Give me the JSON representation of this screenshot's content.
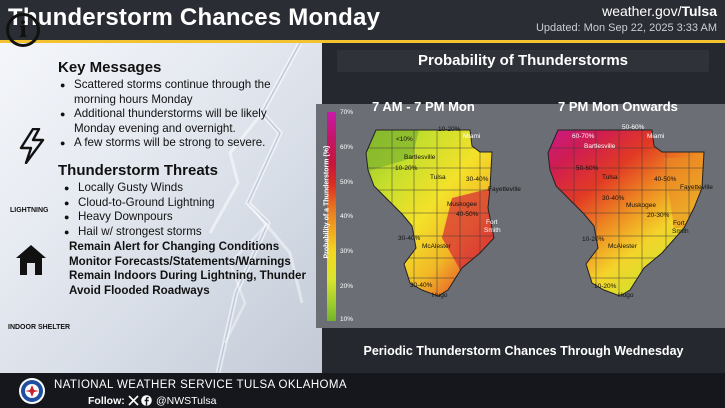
{
  "header": {
    "title": "Thunderstorm Chances Monday",
    "site_prefix": "weather.gov/",
    "site_office": "Tulsa",
    "updated": "Updated: Mon Sep 22, 2025 3:33 AM"
  },
  "key_messages": {
    "title": "Key Messages",
    "bullets": [
      "Scattered storms continue through the morning hours Monday",
      "Additional thunderstorms will be likely Monday evening and overnight.",
      "A few storms will be strong to severe."
    ]
  },
  "threats": {
    "title": "Thunderstorm Threats",
    "icon_caption": "LIGHTNING",
    "bullets": [
      "Locally Gusty Winds",
      "Cloud-to-Ground Lightning",
      "Heavy Downpours",
      "Hail w/ strongest storms"
    ]
  },
  "shelter": {
    "icon_caption": "INDOOR SHELTER",
    "lines": [
      "Remain Alert for Changing Conditions",
      "Monitor Forecasts/Statements/Warnings",
      "Remain Indoors During Lightning, Thunder",
      "Avoid Flooded Roadways"
    ]
  },
  "probability": {
    "title": "Probability of Thunderstorms",
    "colorbar_title": "Probability of a Thunderstorm (%)",
    "colorbar_labels": [
      "70%",
      "60%",
      "50%",
      "40%",
      "30%",
      "20%",
      "10%"
    ],
    "periods": [
      {
        "title": "7 AM - 7 PM Mon",
        "labels": [
          "<10%",
          "10-20%",
          "Miami",
          "Bartlesville",
          "10-20%",
          "Tulsa",
          "30-40%",
          "Fayetteville",
          "Muskogee",
          "40-50%",
          "Fort",
          "Smith",
          "30-40%",
          "McAlester",
          "30-40%",
          "Hugo"
        ]
      },
      {
        "title": "7 PM Mon Onwards",
        "labels": [
          "50-60%",
          "60-70%",
          "Miami",
          "Bartlesville",
          "50-60%",
          "Tulsa",
          "40-50%",
          "Fayetteville",
          "30-40%",
          "Muskogee",
          "20-30%",
          "Fort",
          "Smith",
          "10-20%",
          "McAlester",
          "10-20%",
          "Hugo"
        ]
      }
    ],
    "footer_note": "Periodic Thunderstorm Chances Through Wednesday"
  },
  "footer": {
    "office": "NATIONAL WEATHER SERVICE TULSA OKLAHOMA",
    "follow_label": "Follow:",
    "handle": "@NWSTulsa"
  },
  "icons": [
    "info-icon",
    "lightning-bolt-icon",
    "house-icon",
    "nws-logo",
    "x-icon",
    "facebook-icon"
  ]
}
